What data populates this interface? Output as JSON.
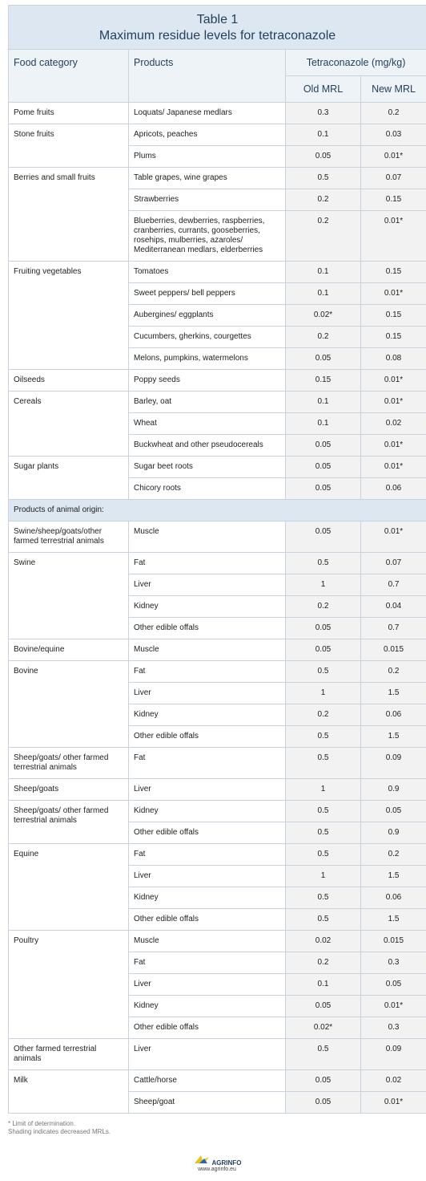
{
  "header": {
    "title": "Table 1",
    "subtitle": "Maximum residue levels for tetraconazole"
  },
  "table": {
    "columns": {
      "category": "Food category",
      "products": "Products",
      "group": "Tetraconazole (mg/kg)",
      "old": "Old MRL",
      "new": "New MRL"
    },
    "plant_groups": [
      {
        "category": "Pome fruits",
        "rows": [
          [
            "Loquats/ Japanese medlars",
            "0.3",
            "0.2"
          ]
        ]
      },
      {
        "category": "Stone fruits",
        "rows": [
          [
            "Apricots, peaches",
            "0.1",
            "0.03"
          ],
          [
            "Plums",
            "0.05",
            "0.01*"
          ]
        ]
      },
      {
        "category": "Berries and small fruits",
        "rows": [
          [
            "Table grapes, wine grapes",
            "0.5",
            "0.07"
          ],
          [
            "Strawberries",
            "0.2",
            "0.15"
          ],
          [
            "Blueberries, dewberries, raspberries, cranberries, currants, gooseberries, rosehips, mulberries, azaroles/ Mediterranean medlars, elderberries",
            "0.2",
            "0.01*"
          ]
        ]
      },
      {
        "category": "Fruiting vegetables",
        "rows": [
          [
            "Tomatoes",
            "0.1",
            "0.15"
          ],
          [
            "Sweet peppers/ bell peppers",
            "0.1",
            "0.01*"
          ],
          [
            "Aubergines/ eggplants",
            "0.02*",
            "0.15"
          ],
          [
            "Cucumbers, gherkins, courgettes",
            "0.2",
            "0.15"
          ],
          [
            "Melons, pumpkins, watermelons",
            "0.05",
            "0.08"
          ]
        ]
      },
      {
        "category": "Oilseeds",
        "rows": [
          [
            "Poppy seeds",
            "0.15",
            "0.01*"
          ]
        ]
      },
      {
        "category": "Cereals",
        "rows": [
          [
            "Barley, oat",
            "0.1",
            "0.01*"
          ],
          [
            "Wheat",
            "0.1",
            "0.02"
          ],
          [
            "Buckwheat and other pseudocereals",
            "0.05",
            "0.01*"
          ]
        ]
      },
      {
        "category": "Sugar plants",
        "rows": [
          [
            "Sugar beet roots",
            "0.05",
            "0.01*"
          ],
          [
            "Chicory roots",
            "0.05",
            "0.06"
          ]
        ]
      }
    ],
    "animal_heading": "Products of animal origin:",
    "animal_groups": [
      {
        "category": "Swine/sheep/goats/other farmed terrestrial animals",
        "rows": [
          [
            "Muscle",
            "0.05",
            "0.01*"
          ]
        ]
      },
      {
        "category": "Swine",
        "rows": [
          [
            "Fat",
            "0.5",
            "0.07"
          ],
          [
            "Liver",
            "1",
            "0.7"
          ],
          [
            "Kidney",
            "0.2",
            "0.04"
          ],
          [
            "Other edible offals",
            "0.05",
            "0.7"
          ]
        ]
      },
      {
        "category": "Bovine/equine",
        "rows": [
          [
            "Muscle",
            "0.05",
            "0.015"
          ]
        ]
      },
      {
        "category": "Bovine",
        "rows": [
          [
            "Fat",
            "0.5",
            "0.2"
          ],
          [
            "Liver",
            "1",
            "1.5"
          ],
          [
            "Kidney",
            "0.2",
            "0.06"
          ],
          [
            "Other edible offals",
            "0.5",
            "1.5"
          ]
        ]
      },
      {
        "category": "Sheep/goats/ other farmed terrestrial animals",
        "rows": [
          [
            "Fat",
            "0.5",
            "0.09"
          ]
        ]
      },
      {
        "category": "Sheep/goats",
        "rows": [
          [
            "Liver",
            "1",
            "0.9"
          ]
        ]
      },
      {
        "category": "Sheep/goats/ other farmed terrestrial animals",
        "rows": [
          [
            "Kidney",
            "0.5",
            "0.05"
          ],
          [
            "Other edible offals",
            "0.5",
            "0.9"
          ]
        ]
      },
      {
        "category": "Equine",
        "rows": [
          [
            "Fat",
            "0.5",
            "0.2"
          ],
          [
            "Liver",
            "1",
            "1.5"
          ],
          [
            "Kidney",
            "0.5",
            "0.06"
          ],
          [
            "Other edible offals",
            "0.5",
            "1.5"
          ]
        ]
      },
      {
        "category": "Poultry",
        "rows": [
          [
            "Muscle",
            "0.02",
            "0.015"
          ],
          [
            "Fat",
            "0.2",
            "0.3"
          ],
          [
            "Liver",
            "0.1",
            "0.05"
          ],
          [
            "Kidney",
            "0.05",
            "0.01*"
          ],
          [
            "Other edible offals",
            "0.02*",
            "0.3"
          ]
        ]
      },
      {
        "category": "Other farmed terrestrial animals",
        "rows": [
          [
            "Liver",
            "0.5",
            "0.09"
          ]
        ]
      },
      {
        "category": "Milk",
        "rows": [
          [
            "Cattle/horse",
            "0.05",
            "0.02"
          ],
          [
            "Sheep/goat",
            "0.05",
            "0.01*"
          ]
        ]
      }
    ]
  },
  "footer": {
    "notes": [
      "* Limit of determination.",
      "Shading indicates decreased MRLs."
    ],
    "logo": "AGRINFO",
    "url": "www.agrinfo.eu"
  }
}
